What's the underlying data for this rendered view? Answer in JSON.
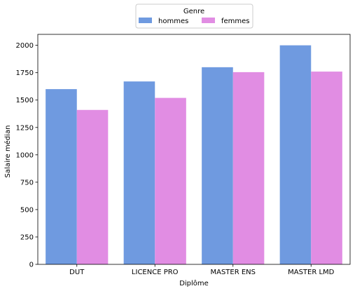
{
  "chart_data": {
    "type": "bar",
    "categories": [
      "DUT",
      "LICENCE PRO",
      "MASTER ENS",
      "MASTER LMD"
    ],
    "series": [
      {
        "name": "hommes",
        "values": [
          1600,
          1670,
          1800,
          2000
        ],
        "color": "#6f9ae0"
      },
      {
        "name": "femmes",
        "values": [
          1410,
          1520,
          1755,
          1760
        ],
        "color": "#e18de3"
      }
    ],
    "xlabel": "Diplôme",
    "ylabel": "Salaire médian",
    "ylim": [
      0,
      2100
    ],
    "yticks": [
      0,
      250,
      500,
      750,
      1000,
      1250,
      1500,
      1750,
      2000
    ],
    "legend": {
      "title": "Genre",
      "placement": "top-center"
    },
    "grid": false
  }
}
